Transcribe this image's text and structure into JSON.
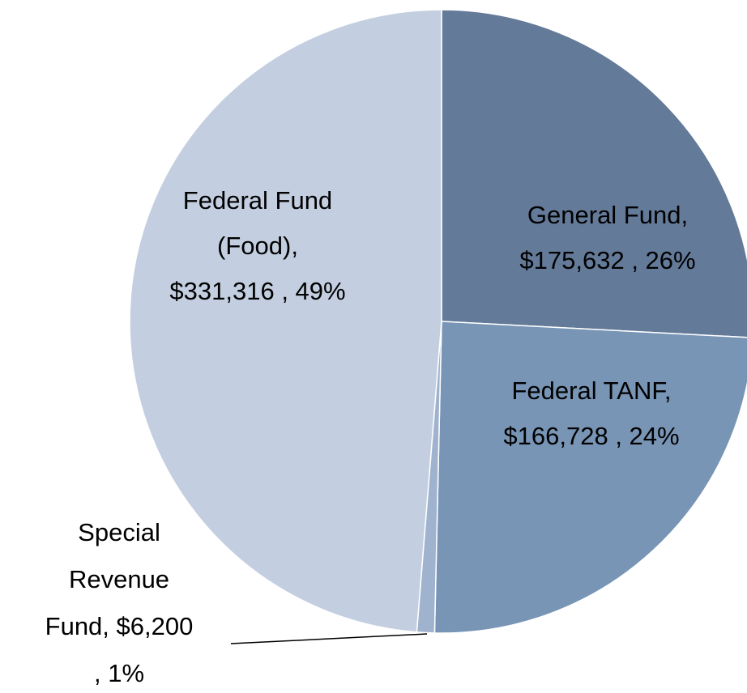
{
  "chart_data": {
    "type": "pie",
    "categories": [
      "General Fund",
      "Federal TANF",
      "Special Revenue Fund",
      "Federal Fund (Food)"
    ],
    "values": [
      175632,
      166728,
      6200,
      331316
    ],
    "colors": [
      "#647a99",
      "#7895b6",
      "#9fb3cf",
      "#c3cfe0"
    ],
    "value_labels": [
      [
        "General Fund,",
        "$175,632 , 26%"
      ],
      [
        "Federal TANF,",
        "$166,728 , 24%"
      ],
      [
        "Special",
        "Revenue",
        "Fund,  $6,200",
        ", 1%"
      ],
      [
        "Federal Fund",
        "(Food),",
        "$331,316 , 49%"
      ]
    ]
  }
}
